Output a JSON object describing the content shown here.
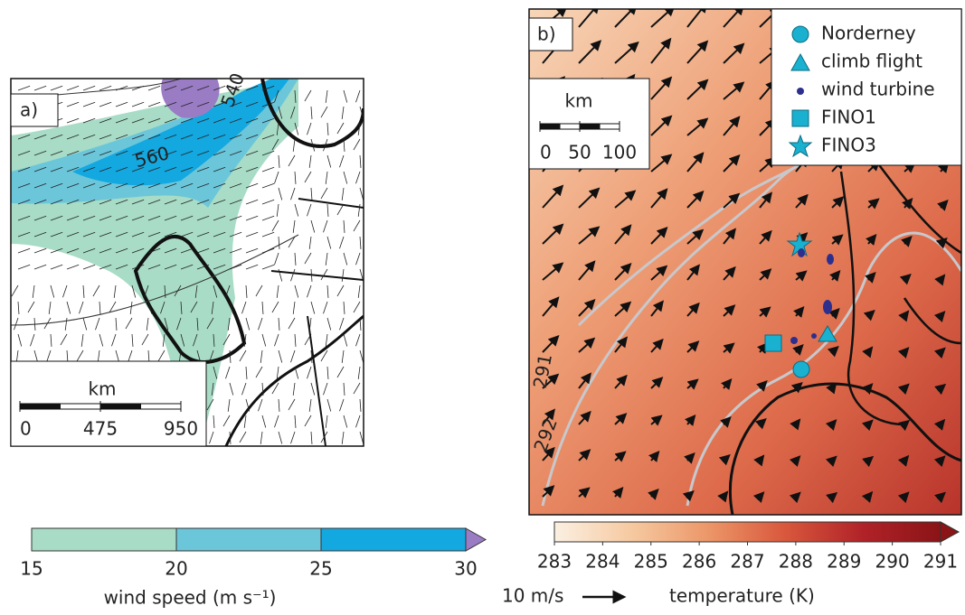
{
  "panel_a": {
    "label": "a)",
    "scale_bar": {
      "unit": "km",
      "ticks": [
        0,
        475,
        950
      ]
    },
    "contour_labels": [
      "560",
      "540"
    ],
    "colorbar": {
      "lim": [
        15,
        30
      ],
      "ticks": [
        15,
        20,
        25,
        30
      ],
      "colors": [
        "#a8dcc6",
        "#6cc6da",
        "#14a8e0"
      ],
      "extend_color": "#9a7cc4",
      "label": "wind speed (m s⁻¹)"
    }
  },
  "panel_b": {
    "label": "b)",
    "scale_bar": {
      "unit": "km",
      "ticks": [
        0,
        50,
        100
      ]
    },
    "legend": [
      "Norderney",
      "climb flight",
      "wind turbine",
      "FINO1",
      "FINO3"
    ],
    "contour_labels": [
      "291",
      "292"
    ],
    "colorbar": {
      "lim": [
        283,
        291
      ],
      "ticks": [
        283,
        284,
        285,
        286,
        287,
        288,
        289,
        290,
        291
      ],
      "colors": [
        "#fbf0e2",
        "#f6c9a0",
        "#ec9668",
        "#d8573c",
        "#b02228",
        "#8a1416"
      ],
      "label": "temperature (K)"
    },
    "reference_vector": "10 m/s"
  }
}
